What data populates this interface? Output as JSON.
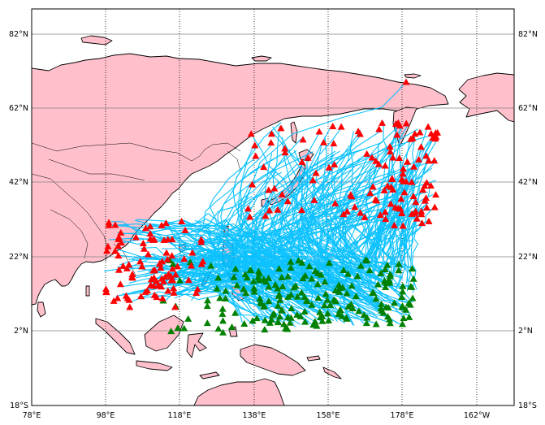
{
  "map": {
    "lat_labels": [
      "82°N",
      "62°N",
      "42°N",
      "22°N",
      "2°N",
      "18°S"
    ],
    "lon_labels": [
      "78°E",
      "98°E",
      "118°E",
      "138°E",
      "158°E",
      "178°E",
      "162°W"
    ],
    "extent": {
      "lon_min": 78,
      "lon_max": 208,
      "lat_min": -18,
      "lat_max": 88
    },
    "colors": {
      "land": "#ffc0cb",
      "coastline": "#000000",
      "ocean": "#ffffff",
      "tracks": "#00bfff",
      "genesis_marker": "#008000",
      "end_marker": "#ff0000"
    },
    "marker_symbol": "triangle",
    "grid": {
      "parallels": "solid-gray",
      "meridians": "dotted-black"
    }
  }
}
